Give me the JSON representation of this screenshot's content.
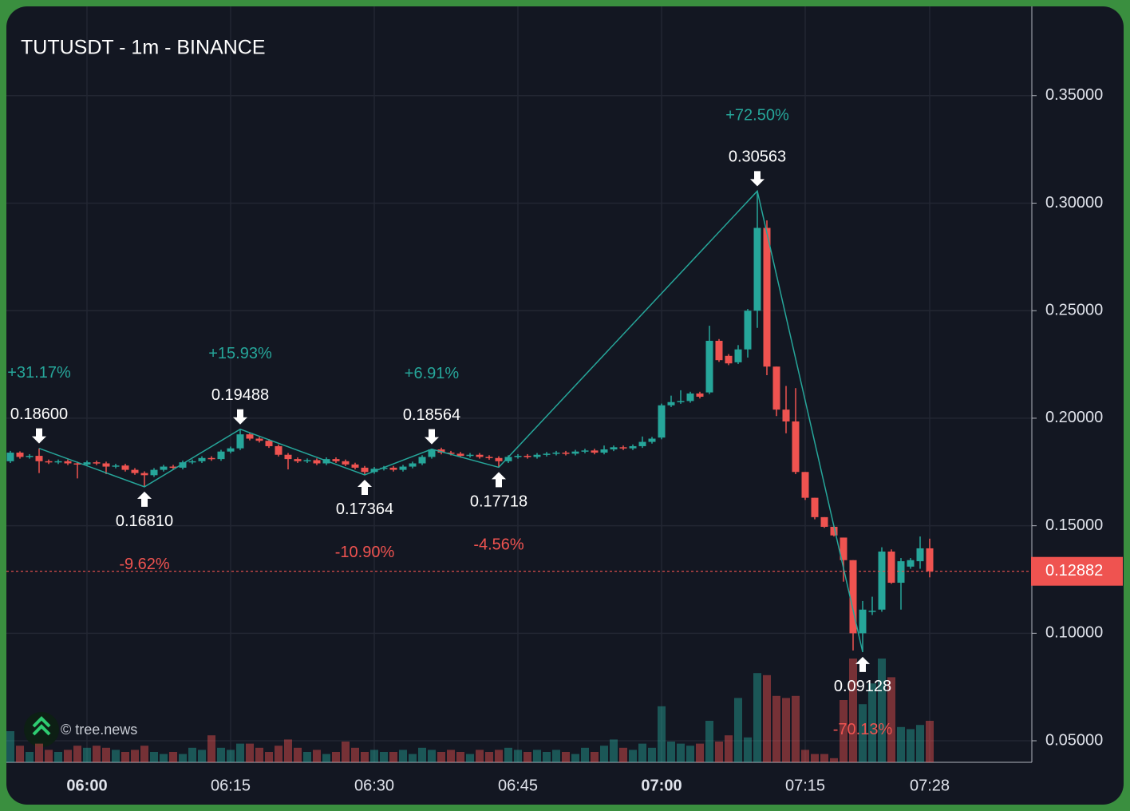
{
  "chart_data": {
    "type": "candlestick",
    "title": "TUTUSDT - 1m - BINANCE",
    "watermark": "© tree.news",
    "up_color": "#26a69a",
    "down_color": "#ef5350",
    "x": [
      "05:52",
      "05:53",
      "05:54",
      "05:55",
      "05:56",
      "05:57",
      "05:58",
      "05:59",
      "06:00",
      "06:01",
      "06:02",
      "06:03",
      "06:04",
      "06:05",
      "06:06",
      "06:07",
      "06:08",
      "06:09",
      "06:10",
      "06:11",
      "06:12",
      "06:13",
      "06:14",
      "06:15",
      "06:16",
      "06:17",
      "06:18",
      "06:19",
      "06:20",
      "06:21",
      "06:22",
      "06:23",
      "06:24",
      "06:25",
      "06:26",
      "06:27",
      "06:28",
      "06:29",
      "06:30",
      "06:31",
      "06:32",
      "06:33",
      "06:34",
      "06:35",
      "06:36",
      "06:37",
      "06:38",
      "06:39",
      "06:40",
      "06:41",
      "06:42",
      "06:43",
      "06:44",
      "06:45",
      "06:46",
      "06:47",
      "06:48",
      "06:49",
      "06:50",
      "06:51",
      "06:52",
      "06:53",
      "06:54",
      "06:55",
      "06:56",
      "06:57",
      "06:58",
      "06:59",
      "07:00",
      "07:01",
      "07:02",
      "07:03",
      "07:04",
      "07:05",
      "07:06",
      "07:07",
      "07:08",
      "07:09",
      "07:10",
      "07:11",
      "07:12",
      "07:13",
      "07:14",
      "07:15",
      "07:16",
      "07:17",
      "07:18",
      "07:19",
      "07:20",
      "07:21",
      "07:22",
      "07:23",
      "07:24",
      "07:25",
      "07:26",
      "07:27",
      "07:28"
    ],
    "candles": [
      [
        0.18,
        0.1848,
        0.1792,
        0.184,
        15
      ],
      [
        0.184,
        0.1846,
        0.1812,
        0.182,
        8
      ],
      [
        0.182,
        0.1833,
        0.1812,
        0.1825,
        5
      ],
      [
        0.1825,
        0.186,
        0.1745,
        0.18,
        9
      ],
      [
        0.18,
        0.1808,
        0.1787,
        0.1795,
        6
      ],
      [
        0.1795,
        0.1808,
        0.1787,
        0.18,
        5
      ],
      [
        0.18,
        0.1808,
        0.1782,
        0.179,
        6
      ],
      [
        0.179,
        0.1798,
        0.172,
        0.1785,
        8
      ],
      [
        0.1785,
        0.1803,
        0.1777,
        0.1795,
        7
      ],
      [
        0.1795,
        0.1803,
        0.1782,
        0.179,
        8
      ],
      [
        0.179,
        0.1798,
        0.174,
        0.1775,
        7
      ],
      [
        0.1775,
        0.1788,
        0.1767,
        0.178,
        6
      ],
      [
        0.178,
        0.1788,
        0.1752,
        0.176,
        5
      ],
      [
        0.176,
        0.1768,
        0.1737,
        0.1745,
        6
      ],
      [
        0.1745,
        0.1753,
        0.1681,
        0.1735,
        8
      ],
      [
        0.1735,
        0.1768,
        0.1727,
        0.176,
        5
      ],
      [
        0.176,
        0.1783,
        0.1752,
        0.1775,
        4
      ],
      [
        0.1775,
        0.1783,
        0.1762,
        0.177,
        5
      ],
      [
        0.177,
        0.1803,
        0.1762,
        0.1795,
        4
      ],
      [
        0.1795,
        0.1808,
        0.1787,
        0.18,
        7
      ],
      [
        0.18,
        0.1823,
        0.1792,
        0.1815,
        6
      ],
      [
        0.1815,
        0.1823,
        0.1802,
        0.181,
        13
      ],
      [
        0.181,
        0.1853,
        0.1802,
        0.1845,
        7
      ],
      [
        0.1845,
        0.1868,
        0.1837,
        0.186,
        6
      ],
      [
        0.186,
        0.19488,
        0.1852,
        0.1925,
        9
      ],
      [
        0.1925,
        0.1933,
        0.1897,
        0.1905,
        9
      ],
      [
        0.1905,
        0.1913,
        0.1887,
        0.1895,
        7
      ],
      [
        0.1895,
        0.1903,
        0.1862,
        0.187,
        5
      ],
      [
        0.187,
        0.1878,
        0.1822,
        0.183,
        8
      ],
      [
        0.183,
        0.1838,
        0.1762,
        0.181,
        11
      ],
      [
        0.181,
        0.1818,
        0.1792,
        0.18,
        7
      ],
      [
        0.18,
        0.1813,
        0.1792,
        0.1805,
        5
      ],
      [
        0.1805,
        0.1813,
        0.1782,
        0.179,
        6
      ],
      [
        0.179,
        0.1818,
        0.1782,
        0.181,
        4
      ],
      [
        0.181,
        0.1818,
        0.1792,
        0.18,
        5
      ],
      [
        0.18,
        0.1808,
        0.1777,
        0.1785,
        10
      ],
      [
        0.1785,
        0.1793,
        0.1762,
        0.177,
        7
      ],
      [
        0.177,
        0.1778,
        0.17364,
        0.175,
        5
      ],
      [
        0.175,
        0.1773,
        0.1742,
        0.1765,
        6
      ],
      [
        0.1765,
        0.1778,
        0.1757,
        0.177,
        5
      ],
      [
        0.177,
        0.1778,
        0.1752,
        0.176,
        5
      ],
      [
        0.176,
        0.1783,
        0.1752,
        0.1775,
        6
      ],
      [
        0.1775,
        0.1798,
        0.1767,
        0.179,
        4
      ],
      [
        0.179,
        0.1828,
        0.1782,
        0.182,
        7
      ],
      [
        0.182,
        0.18564,
        0.1812,
        0.1855,
        6
      ],
      [
        0.1855,
        0.1863,
        0.1832,
        0.184,
        5
      ],
      [
        0.184,
        0.1848,
        0.1827,
        0.1835,
        6
      ],
      [
        0.1835,
        0.1843,
        0.1817,
        0.1825,
        5
      ],
      [
        0.1825,
        0.1838,
        0.1817,
        0.183,
        4
      ],
      [
        0.183,
        0.1838,
        0.1812,
        0.182,
        6
      ],
      [
        0.182,
        0.1828,
        0.1807,
        0.1815,
        5
      ],
      [
        0.1815,
        0.1823,
        0.17718,
        0.18,
        6
      ],
      [
        0.18,
        0.1828,
        0.1792,
        0.182,
        7
      ],
      [
        0.182,
        0.1833,
        0.1812,
        0.1825,
        6
      ],
      [
        0.1825,
        0.1833,
        0.1812,
        0.182,
        5
      ],
      [
        0.182,
        0.1838,
        0.1812,
        0.183,
        6
      ],
      [
        0.183,
        0.1843,
        0.1822,
        0.1835,
        5
      ],
      [
        0.1835,
        0.1848,
        0.1827,
        0.184,
        6
      ],
      [
        0.184,
        0.1848,
        0.1827,
        0.1835,
        5
      ],
      [
        0.1835,
        0.1853,
        0.1827,
        0.1845,
        4
      ],
      [
        0.1845,
        0.1858,
        0.1837,
        0.185,
        7
      ],
      [
        0.185,
        0.1858,
        0.1832,
        0.184,
        5
      ],
      [
        0.184,
        0.1873,
        0.1832,
        0.1855,
        8
      ],
      [
        0.1855,
        0.1873,
        0.1847,
        0.1865,
        11
      ],
      [
        0.1865,
        0.1873,
        0.1852,
        0.186,
        7
      ],
      [
        0.186,
        0.1878,
        0.1852,
        0.187,
        6
      ],
      [
        0.187,
        0.1915,
        0.1862,
        0.189,
        9
      ],
      [
        0.189,
        0.1913,
        0.1882,
        0.1905,
        7
      ],
      [
        0.191,
        0.2068,
        0.1902,
        0.206,
        27
      ],
      [
        0.206,
        0.2105,
        0.2052,
        0.2075,
        10
      ],
      [
        0.2075,
        0.213,
        0.2067,
        0.208,
        9
      ],
      [
        0.208,
        0.2123,
        0.2072,
        0.2115,
        8
      ],
      [
        0.2115,
        0.2123,
        0.2092,
        0.21,
        9
      ],
      [
        0.212,
        0.243,
        0.2112,
        0.236,
        20
      ],
      [
        0.236,
        0.2368,
        0.2262,
        0.227,
        10
      ],
      [
        0.229,
        0.2298,
        0.2247,
        0.2255,
        13
      ],
      [
        0.226,
        0.234,
        0.2252,
        0.232,
        31
      ],
      [
        0.232,
        0.2508,
        0.2282,
        0.25,
        12
      ],
      [
        0.25,
        0.30563,
        0.242,
        0.2885,
        43
      ],
      [
        0.2885,
        0.292,
        0.22,
        0.224,
        42
      ],
      [
        0.224,
        0.224,
        0.201,
        0.204,
        32
      ],
      [
        0.204,
        0.215,
        0.193,
        0.1985,
        31
      ],
      [
        0.1985,
        0.214,
        0.174,
        0.175,
        32
      ],
      [
        0.175,
        0.175,
        0.162,
        0.163,
        6
      ],
      [
        0.163,
        0.163,
        0.153,
        0.154,
        4
      ],
      [
        0.154,
        0.154,
        0.149,
        0.1495,
        4
      ],
      [
        0.1495,
        0.15,
        0.145,
        0.1455,
        2
      ],
      [
        0.1445,
        0.1445,
        0.124,
        0.134,
        30
      ],
      [
        0.134,
        0.134,
        0.092,
        0.1,
        50
      ],
      [
        0.1,
        0.115,
        0.09128,
        0.111,
        28
      ],
      [
        0.11,
        0.117,
        0.1085,
        0.1105,
        38
      ],
      [
        0.111,
        0.14,
        0.11,
        0.138,
        50
      ],
      [
        0.138,
        0.139,
        0.123,
        0.1235,
        41
      ],
      [
        0.1235,
        0.135,
        0.111,
        0.1335,
        17
      ],
      [
        0.131,
        0.135,
        0.13,
        0.134,
        16
      ],
      [
        0.1335,
        0.145,
        0.13,
        0.1395,
        18
      ],
      [
        0.1395,
        0.144,
        0.126,
        0.12882,
        20
      ]
    ],
    "ylim": [
      0.04,
      0.3915
    ],
    "yticks": [
      {
        "value": 0.05,
        "label": "0.05000"
      },
      {
        "value": 0.1,
        "label": "0.10000"
      },
      {
        "value": 0.15,
        "label": "0.15000"
      },
      {
        "value": 0.2,
        "label": "0.20000"
      },
      {
        "value": 0.25,
        "label": "0.25000"
      },
      {
        "value": 0.3,
        "label": "0.30000"
      },
      {
        "value": 0.35,
        "label": "0.35000"
      }
    ],
    "xticks": [
      "06:00",
      "06:15",
      "06:30",
      "06:45",
      "07:00",
      "07:15",
      "07:28"
    ],
    "volume_lim": [
      0,
      100
    ],
    "grid": true,
    "last_price": {
      "value": 0.12882,
      "label": "0.12882"
    },
    "pivots": [
      {
        "x": "05:55",
        "value": 0.186,
        "label": "0.18600",
        "change": 31.17,
        "change_label": "+31.17%"
      },
      {
        "x": "06:06",
        "value": 0.1681,
        "label": "0.16810",
        "change": -9.62,
        "change_label": "-9.62%"
      },
      {
        "x": "06:16",
        "value": 0.19488,
        "label": "0.19488",
        "change": 15.93,
        "change_label": "+15.93%"
      },
      {
        "x": "06:29",
        "value": 0.17364,
        "label": "0.17364",
        "change": -10.9,
        "change_label": "-10.90%"
      },
      {
        "x": "06:36",
        "value": 0.18564,
        "label": "0.18564",
        "change": 6.91,
        "change_label": "+6.91%"
      },
      {
        "x": "06:43",
        "value": 0.17718,
        "label": "0.17718",
        "change": -4.56,
        "change_label": "-4.56%"
      },
      {
        "x": "07:10",
        "value": 0.30563,
        "label": "0.30563",
        "change": 72.5,
        "change_label": "+72.50%"
      },
      {
        "x": "07:21",
        "value": 0.09128,
        "label": "0.09128",
        "change": -70.13,
        "change_label": "-70.13%"
      }
    ]
  }
}
